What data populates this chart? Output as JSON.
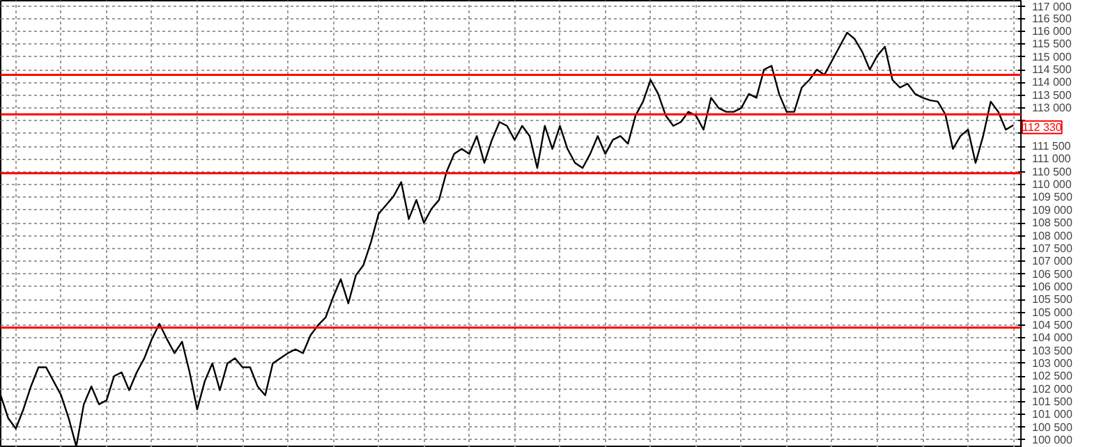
{
  "chart_data": {
    "type": "line",
    "categories": [
      null,
      null,
      null,
      null,
      null,
      null,
      null,
      null,
      null,
      null,
      null,
      null,
      null,
      null,
      null,
      null,
      null,
      null,
      null,
      null,
      null,
      null,
      null,
      null,
      null,
      null,
      null,
      null,
      null,
      null,
      null,
      null,
      null,
      null,
      null,
      null,
      null,
      null,
      null,
      null,
      null,
      null,
      null,
      null,
      null,
      null,
      null,
      null,
      null,
      null,
      null,
      null,
      null,
      null,
      null,
      null,
      null,
      null,
      null,
      null,
      null,
      null,
      null,
      null,
      null,
      null,
      null,
      null,
      null,
      null,
      null,
      null,
      null,
      null,
      null,
      null,
      null,
      null,
      null,
      null,
      null,
      null,
      null,
      null,
      null,
      null,
      null,
      null,
      null,
      null,
      null,
      null,
      null,
      null,
      null,
      null,
      null,
      null,
      null,
      null,
      null,
      null,
      null,
      null,
      null,
      null,
      null,
      null,
      null,
      null,
      null,
      null,
      null,
      null,
      null,
      null,
      null,
      null,
      null,
      null,
      null,
      null,
      null,
      null,
      null,
      null,
      null,
      null,
      null,
      null,
      null,
      null,
      null,
      null,
      null
    ],
    "series": [
      {
        "color": "#000000",
        "values": [
          101750,
          100850,
          100450,
          101200,
          102100,
          102850,
          102850,
          102300,
          101750,
          100850,
          99750,
          101400,
          102100,
          101400,
          101550,
          102500,
          102650,
          101950,
          102650,
          103200,
          103950,
          104550,
          103950,
          103400,
          103850,
          102650,
          101200,
          102300,
          103000,
          101950,
          103000,
          103200,
          102850,
          102850,
          102100,
          101750,
          103000,
          103200,
          103400,
          103550,
          103400,
          104100,
          104500,
          104800,
          105600,
          106300,
          105350,
          106450,
          106850,
          107750,
          108850,
          109200,
          109550,
          110100,
          108650,
          109400,
          108500,
          109050,
          109400,
          110500,
          111200,
          111400,
          111200,
          111900,
          110850,
          111750,
          112450,
          112300,
          111750,
          112300,
          111900,
          110650,
          112300,
          111400,
          112300,
          111400,
          110850,
          110650,
          111200,
          111900,
          111200,
          111750,
          111900,
          111600,
          112700,
          113250,
          114100,
          113550,
          112700,
          112300,
          112450,
          112850,
          112700,
          112150,
          113400,
          113000,
          112850,
          112850,
          113000,
          113550,
          113400,
          114500,
          114650,
          113550,
          112850,
          112850,
          113800,
          114100,
          114500,
          114300,
          114850,
          115400,
          115950,
          115700,
          115200,
          114500,
          115050,
          115400,
          114100,
          113800,
          113950,
          113550,
          113400,
          113300,
          113250,
          112750,
          111400,
          111900,
          112150,
          110850,
          111900,
          113250,
          112850,
          112150,
          112330
        ]
      }
    ],
    "ylim": [
      99700,
      117200
    ],
    "yticks": [
      {
        "value": 100000,
        "label": "100 000"
      },
      {
        "value": 100500,
        "label": "100 500"
      },
      {
        "value": 101000,
        "label": "101 000"
      },
      {
        "value": 101500,
        "label": "101 500"
      },
      {
        "value": 102000,
        "label": "102 000"
      },
      {
        "value": 102500,
        "label": "102 500"
      },
      {
        "value": 103000,
        "label": "103 000"
      },
      {
        "value": 103500,
        "label": "103 500"
      },
      {
        "value": 104000,
        "label": "104 000"
      },
      {
        "value": 104500,
        "label": "104 500"
      },
      {
        "value": 105000,
        "label": "105 000"
      },
      {
        "value": 105500,
        "label": "105 500"
      },
      {
        "value": 106000,
        "label": "106 000"
      },
      {
        "value": 106500,
        "label": "106 500"
      },
      {
        "value": 107000,
        "label": "107 000"
      },
      {
        "value": 107500,
        "label": "107 500"
      },
      {
        "value": 108000,
        "label": "108 000"
      },
      {
        "value": 108500,
        "label": "108 500"
      },
      {
        "value": 109000,
        "label": "109 000"
      },
      {
        "value": 109500,
        "label": "109 500"
      },
      {
        "value": 110000,
        "label": "110 000"
      },
      {
        "value": 110500,
        "label": "110 500"
      },
      {
        "value": 111000,
        "label": "111 000"
      },
      {
        "value": 111500,
        "label": "111 500"
      },
      {
        "value": 112000,
        "label": null
      },
      {
        "value": 112500,
        "label": null
      },
      {
        "value": 113000,
        "label": "113 000"
      },
      {
        "value": 113500,
        "label": "113 500"
      },
      {
        "value": 114000,
        "label": "114 000"
      },
      {
        "value": 114500,
        "label": "114 500"
      },
      {
        "value": 115000,
        "label": "115 000"
      },
      {
        "value": 115500,
        "label": "115 500"
      },
      {
        "value": 116000,
        "label": "116 000"
      },
      {
        "value": 116500,
        "label": "116 500"
      },
      {
        "value": 117000,
        "label": "117 000"
      }
    ],
    "ref_lines": [
      {
        "axis": "y",
        "value": 114300,
        "color": "#ff0000"
      },
      {
        "axis": "y",
        "value": 112750,
        "color": "#ff0000"
      },
      {
        "axis": "y",
        "value": 110450,
        "color": "#ff0000"
      },
      {
        "axis": "y",
        "value": 104400,
        "color": "#ff0000"
      }
    ],
    "annotations": [
      {
        "text": "112 330",
        "y": 112330
      }
    ],
    "grid": true,
    "tick_labels": "y",
    "marker": "none",
    "line_style": "solid"
  }
}
